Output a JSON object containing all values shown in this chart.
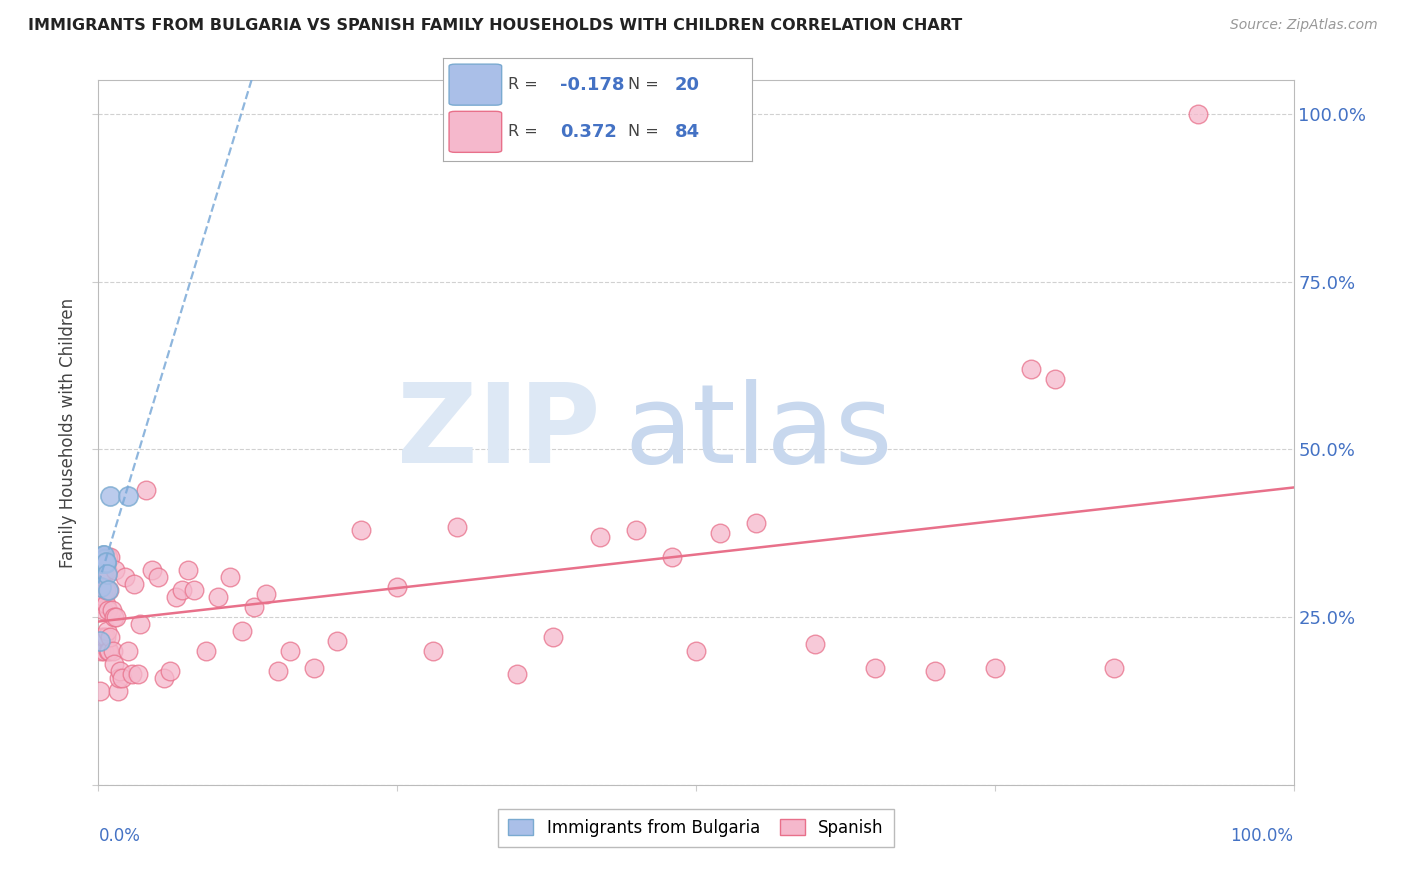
{
  "title": "IMMIGRANTS FROM BULGARIA VS SPANISH FAMILY HOUSEHOLDS WITH CHILDREN CORRELATION CHART",
  "source": "Source: ZipAtlas.com",
  "ylabel": "Family Households with Children",
  "legend_blue_R": "-0.178",
  "legend_blue_N": "20",
  "legend_pink_R": "0.372",
  "legend_pink_N": "84",
  "legend_label_blue": "Immigrants from Bulgaria",
  "legend_label_pink": "Spanish",
  "blue_scatter_color": "#AABFE8",
  "blue_edge_color": "#7AAAD0",
  "pink_scatter_color": "#F5B8CC",
  "pink_edge_color": "#E8708A",
  "trend_blue_color": "#7BAAD8",
  "trend_pink_color": "#E8708A",
  "grid_color": "#CCCCCC",
  "right_tick_color": "#4472C4",
  "blue_x": [
    0.001,
    0.002,
    0.002,
    0.003,
    0.003,
    0.003,
    0.004,
    0.004,
    0.004,
    0.004,
    0.005,
    0.005,
    0.005,
    0.005,
    0.006,
    0.006,
    0.007,
    0.008,
    0.01,
    0.025
  ],
  "blue_y": [
    0.215,
    0.295,
    0.33,
    0.33,
    0.335,
    0.34,
    0.33,
    0.335,
    0.338,
    0.342,
    0.33,
    0.333,
    0.336,
    0.342,
    0.33,
    0.332,
    0.315,
    0.29,
    0.43,
    0.43
  ],
  "pink_x": [
    0.001,
    0.002,
    0.002,
    0.003,
    0.003,
    0.003,
    0.003,
    0.004,
    0.004,
    0.004,
    0.005,
    0.005,
    0.005,
    0.005,
    0.005,
    0.006,
    0.006,
    0.006,
    0.006,
    0.007,
    0.007,
    0.007,
    0.008,
    0.008,
    0.008,
    0.009,
    0.009,
    0.01,
    0.01,
    0.011,
    0.012,
    0.013,
    0.013,
    0.014,
    0.015,
    0.016,
    0.017,
    0.018,
    0.02,
    0.022,
    0.025,
    0.028,
    0.03,
    0.033,
    0.035,
    0.04,
    0.045,
    0.05,
    0.055,
    0.06,
    0.065,
    0.07,
    0.075,
    0.08,
    0.09,
    0.1,
    0.11,
    0.12,
    0.13,
    0.14,
    0.15,
    0.16,
    0.18,
    0.2,
    0.22,
    0.25,
    0.28,
    0.3,
    0.35,
    0.38,
    0.42,
    0.45,
    0.48,
    0.5,
    0.52,
    0.55,
    0.6,
    0.65,
    0.7,
    0.75,
    0.78,
    0.8,
    0.85,
    0.92
  ],
  "pink_y": [
    0.14,
    0.2,
    0.22,
    0.27,
    0.28,
    0.3,
    0.335,
    0.26,
    0.31,
    0.34,
    0.2,
    0.22,
    0.28,
    0.32,
    0.34,
    0.22,
    0.27,
    0.29,
    0.335,
    0.23,
    0.32,
    0.34,
    0.2,
    0.26,
    0.34,
    0.2,
    0.29,
    0.22,
    0.34,
    0.26,
    0.2,
    0.18,
    0.25,
    0.32,
    0.25,
    0.14,
    0.16,
    0.17,
    0.16,
    0.31,
    0.2,
    0.165,
    0.3,
    0.165,
    0.24,
    0.44,
    0.32,
    0.31,
    0.16,
    0.17,
    0.28,
    0.29,
    0.32,
    0.29,
    0.2,
    0.28,
    0.31,
    0.23,
    0.265,
    0.285,
    0.17,
    0.2,
    0.175,
    0.215,
    0.38,
    0.295,
    0.2,
    0.385,
    0.165,
    0.22,
    0.37,
    0.38,
    0.34,
    0.2,
    0.375,
    0.39,
    0.21,
    0.175,
    0.17,
    0.175,
    0.62,
    0.605,
    0.175,
    1.0
  ],
  "xlim": [
    0,
    1.0
  ],
  "ylim": [
    0,
    1.05
  ],
  "yticks": [
    0.0,
    0.25,
    0.5,
    0.75,
    1.0
  ],
  "yticklabels_right": [
    "",
    "25.0%",
    "50.0%",
    "75.0%",
    "100.0%"
  ],
  "xtick_left_label": "0.0%",
  "xtick_right_label": "100.0%",
  "watermark_zip_color": "#DDE8F5",
  "watermark_atlas_color": "#C8D8EE"
}
